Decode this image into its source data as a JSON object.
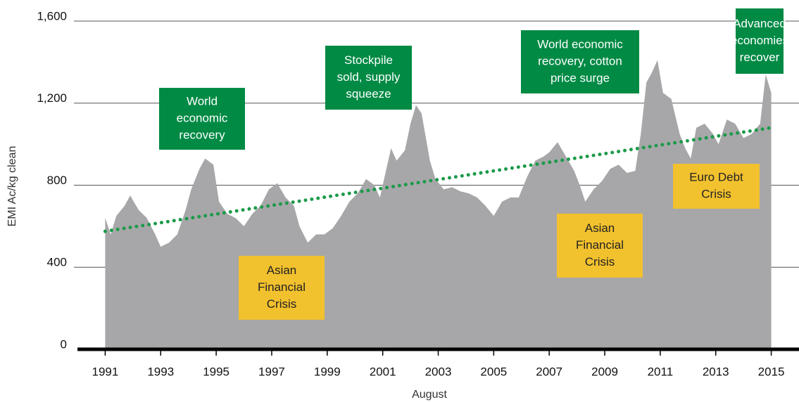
{
  "chart_data": {
    "type": "area",
    "xlabel": "August",
    "ylabel": "EMI Ac/kg clean",
    "xlim": [
      1990,
      2016
    ],
    "ylim": [
      0,
      1600
    ],
    "xticks": [
      1991,
      1993,
      1995,
      1997,
      1999,
      2001,
      2003,
      2005,
      2007,
      2009,
      2011,
      2013,
      2015
    ],
    "yticks": [
      0,
      400,
      800,
      {
        "value": 1200,
        "label": "1,200"
      },
      {
        "value": 1600,
        "label": "1,600"
      }
    ],
    "grid": true,
    "series": [
      {
        "color": "#a7a7a9",
        "x": [
          1991.0,
          1991.2,
          1991.4,
          1991.7,
          1991.9,
          1992.2,
          1992.5,
          1992.8,
          1993.0,
          1993.3,
          1993.6,
          1993.9,
          1994.1,
          1994.4,
          1994.6,
          1994.9,
          1995.1,
          1995.4,
          1995.7,
          1996.0,
          1996.3,
          1996.6,
          1996.9,
          1997.2,
          1997.5,
          1997.8,
          1998.0,
          1998.3,
          1998.6,
          1998.9,
          1999.2,
          1999.5,
          1999.8,
          2000.1,
          2000.4,
          2000.7,
          2000.9,
          2001.1,
          2001.3,
          2001.5,
          2001.8,
          2002.0,
          2002.2,
          2002.4,
          2002.7,
          2002.9,
          2003.2,
          2003.5,
          2003.8,
          2004.1,
          2004.4,
          2004.7,
          2005.0,
          2005.3,
          2005.6,
          2005.9,
          2006.2,
          2006.5,
          2006.8,
          2007.0,
          2007.3,
          2007.6,
          2007.9,
          2008.1,
          2008.3,
          2008.6,
          2008.9,
          2009.2,
          2009.5,
          2009.8,
          2010.1,
          2010.3,
          2010.5,
          2010.7,
          2010.9,
          2011.1,
          2011.4,
          2011.7,
          2011.9,
          2012.1,
          2012.3,
          2012.6,
          2012.9,
          2013.1,
          2013.4,
          2013.7,
          2014.0,
          2014.3,
          2014.6,
          2014.8,
          2015.0
        ],
        "values": [
          640,
          560,
          650,
          700,
          750,
          680,
          640,
          560,
          500,
          520,
          560,
          680,
          780,
          880,
          930,
          900,
          720,
          660,
          640,
          600,
          660,
          700,
          780,
          810,
          740,
          700,
          600,
          520,
          560,
          560,
          590,
          650,
          720,
          760,
          830,
          800,
          740,
          860,
          980,
          920,
          970,
          1100,
          1190,
          1150,
          920,
          830,
          780,
          790,
          770,
          760,
          740,
          700,
          650,
          720,
          740,
          740,
          840,
          920,
          940,
          960,
          1010,
          940,
          870,
          800,
          720,
          780,
          820,
          880,
          900,
          860,
          870,
          1050,
          1300,
          1350,
          1410,
          1250,
          1220,
          1050,
          980,
          930,
          1080,
          1100,
          1050,
          1000,
          1120,
          1100,
          1030,
          1050,
          1100,
          1340,
          1250
        ]
      }
    ],
    "trend": {
      "color": "#1b9a4a",
      "x": [
        1991,
        2015
      ],
      "values": [
        575,
        1080
      ]
    },
    "annotations": [
      {
        "lines": [
          "World",
          "economic",
          "recovery"
        ],
        "color": "#008a44"
      },
      {
        "lines": [
          "Stockpile",
          "sold, supply",
          "squeeze"
        ],
        "color": "#008a44"
      },
      {
        "lines": [
          "World economic",
          "recovery, cotton",
          "price surge"
        ],
        "color": "#008a44"
      },
      {
        "lines": [
          "Advanced",
          "economies",
          "recover"
        ],
        "color": "#008a44"
      },
      {
        "lines": [
          "Asian",
          "Financial",
          "Crisis"
        ],
        "color": "#f2c12e"
      },
      {
        "lines": [
          "Asian",
          "Financial",
          "Crisis"
        ],
        "color": "#f2c12e"
      },
      {
        "lines": [
          "Euro Debt",
          "Crisis"
        ],
        "color": "#f2c12e"
      }
    ]
  }
}
